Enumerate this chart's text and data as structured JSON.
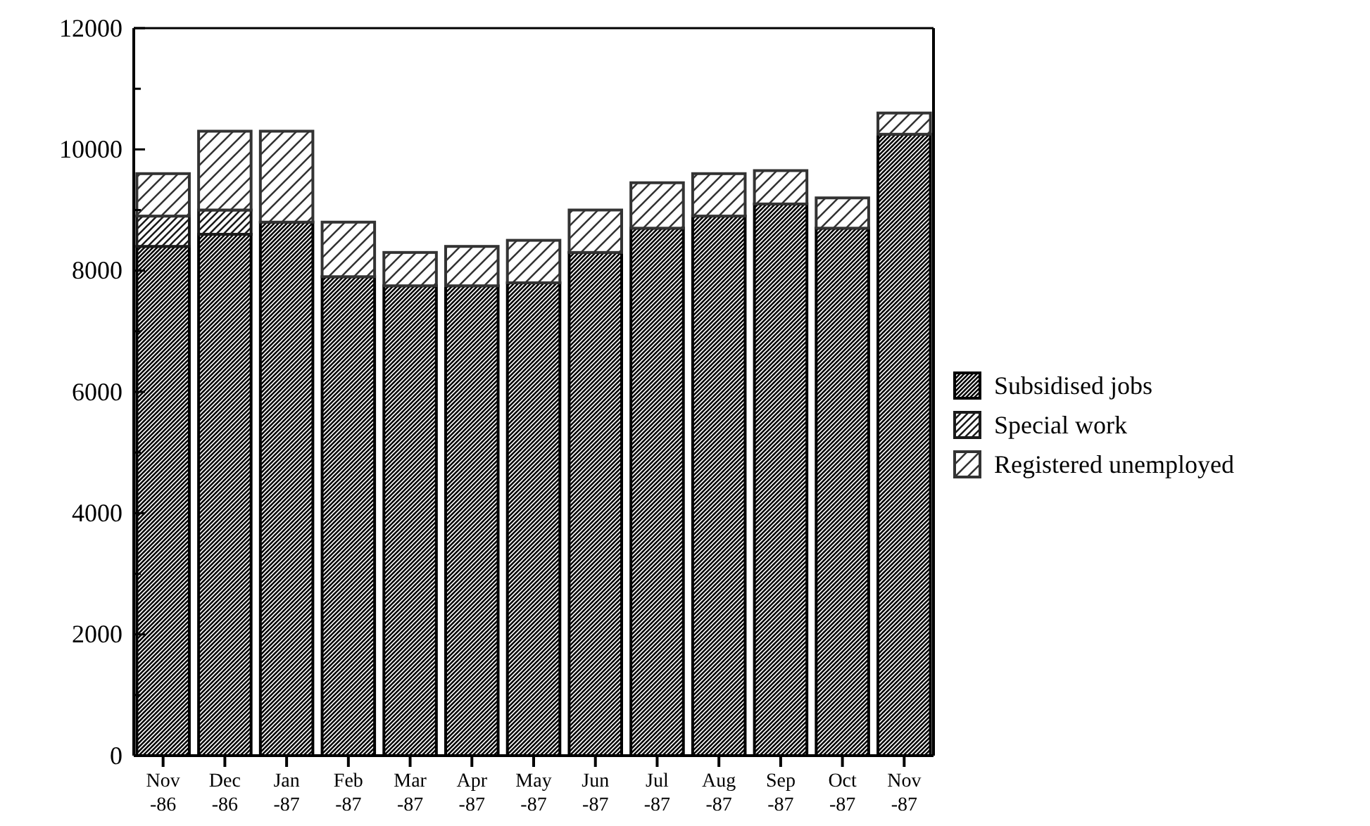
{
  "chart_data": {
    "type": "bar",
    "stacked": true,
    "categories": [
      "Nov -86",
      "Dec -86",
      "Jan -87",
      "Feb -87",
      "Mar -87",
      "Apr -87",
      "May -87",
      "Jun -87",
      "Jul -87",
      "Aug -87",
      "Sep -87",
      "Oct -87",
      "Nov -87"
    ],
    "series": [
      {
        "name": "Subsidised jobs",
        "color": "#000000",
        "values": [
          8400,
          8600,
          8800,
          7900,
          7750,
          7750,
          7800,
          8300,
          8700,
          8900,
          9100,
          8700,
          10250
        ]
      },
      {
        "name": "Special work",
        "color": "#1a1a1a",
        "values": [
          500,
          400,
          0,
          0,
          0,
          0,
          0,
          0,
          0,
          0,
          0,
          0,
          0
        ]
      },
      {
        "name": "Registered unemployed",
        "color": "#333333",
        "values": [
          700,
          1300,
          1500,
          900,
          550,
          650,
          700,
          700,
          750,
          700,
          550,
          500,
          350
        ]
      }
    ],
    "ylim": [
      0,
      12000
    ],
    "yticks": [
      0,
      {
        "value": 1000,
        "label": null
      },
      2000,
      {
        "value": 3000,
        "label": null
      },
      4000,
      {
        "value": 5000,
        "label": null
      },
      6000,
      {
        "value": 7000,
        "label": null
      },
      8000,
      {
        "value": 9000,
        "label": null
      },
      10000,
      {
        "value": 11000,
        "label": null
      },
      12000
    ],
    "legend": "right",
    "grid": false
  }
}
